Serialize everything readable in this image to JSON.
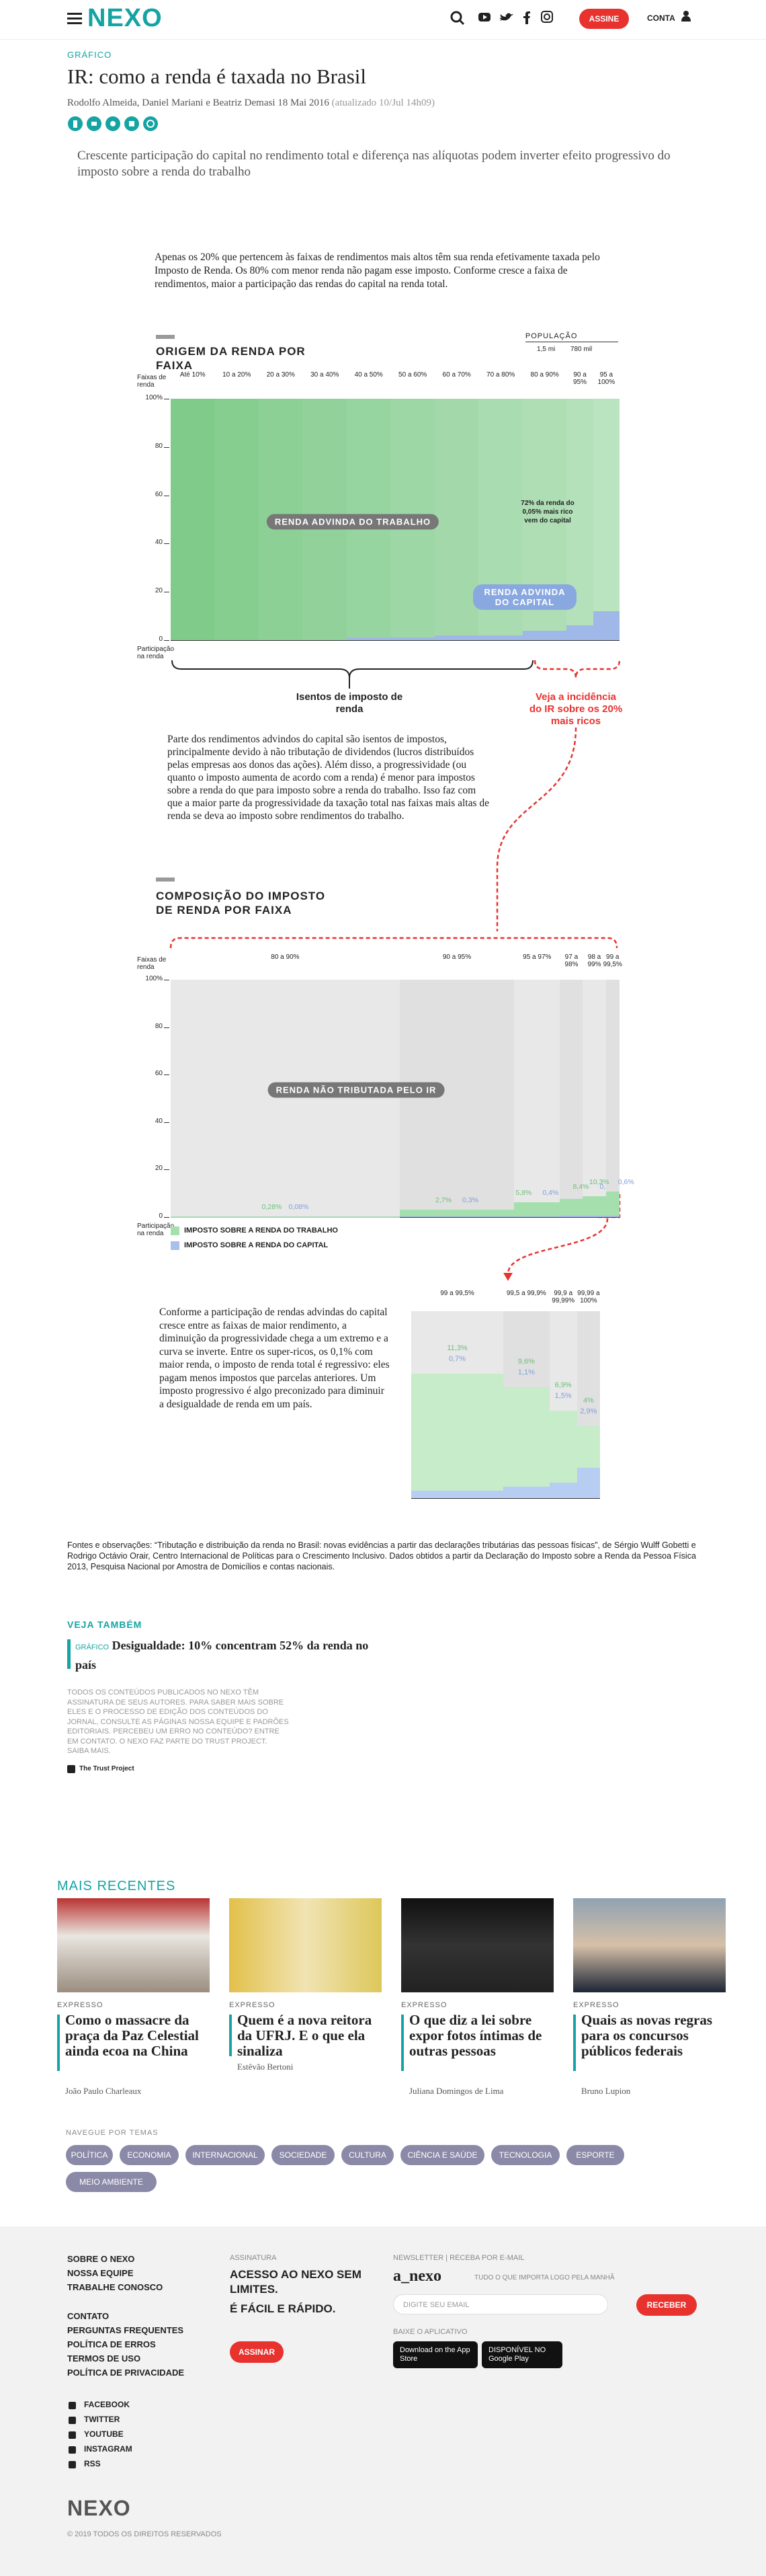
{
  "header": {
    "logo": "NEXO",
    "subscribe": "ASSINE",
    "account": "CONTA"
  },
  "article": {
    "section": "GRÁFICO",
    "title": "IR: como a renda é taxada no Brasil",
    "authors": "Rodolfo Almeida, Daniel Mariani e Beatriz Demasi",
    "date": "18 Mai 2016",
    "updated": "(atualizado 10/Jul 14h09)",
    "subtitle": "Crescente participação do capital no rendimento total e diferença nas alíquotas podem inverter efeito progressivo do imposto sobre a renda do trabalho",
    "intro": "Apenas os 20% que pertencem às faixas de rendimentos mais altos têm sua renda efetivamente taxada pelo Imposto de Renda. Os 80% com menor renda não pagam esse imposto. Conforme cresce a faixa de rendimentos, maior a participação das rendas do capital na renda total.",
    "paragraph2": "Parte dos rendimentos advindos do capital são isentos de impostos, principalmente devido à não tributação de dividendos (lucros distribuídos pelas empresas aos donos das ações). Além disso, a progressividade (ou quanto o imposto aumenta de acordo com a renda) é menor para impostos sobre a renda do que para imposto sobre a renda do trabalho. Isso faz com que a maior parte da progressividade da taxação total nas faixas mais altas de renda se deva ao imposto sobre rendimentos do trabalho.",
    "paragraph3": "Conforme a participação de rendas advindas do capital cresce entre as faixas de maior rendimento, a diminuição da progressividade chega a um extremo e a curva se inverte. Entre os super-ricos, os 0,1% com maior renda, o imposto de renda total é regressivo: eles pagam menos impostos que parcelas anteriores. Um imposto progressivo é algo preconizado para diminuir a desigualdade de renda em um país.",
    "sources": "Fontes e observações: “Tributação e distribuição da renda no Brasil: novas evidências a partir das declarações tributárias das pessoas físicas”, de Sérgio Wulff Gobetti e Rodrigo Octávio Orair, Centro Internacional de Políticas para o Crescimento Inclusivo. Dados obtidos a partir da Declaração do Imposto sobre a Renda da Pessoa Física 2013, Pesquisa Nacional por Amostra de Domicílios e contas nacionais."
  },
  "chart_data": [
    {
      "type": "area",
      "title": "ORIGEM DA RENDA POR FAIXA",
      "x_label": "Faixas de renda",
      "y_label": "Participação na renda",
      "population_label": "POPULAÇÃO",
      "population": [
        "1,5 mi",
        "780 mil"
      ],
      "categories": [
        "Até 10%",
        "10 a 20%",
        "20 a 30%",
        "30 a 40%",
        "40 a 50%",
        "50 a 60%",
        "60 a 70%",
        "70 a 80%",
        "80 a 90%",
        "90 a 95%",
        "95 a 100%"
      ],
      "ylim": [
        0,
        100
      ],
      "yticks": [
        0,
        20,
        40,
        60,
        80,
        {
          "value": 100,
          "label": "100%"
        }
      ],
      "series": [
        {
          "name": "RENDA ADVINDA DO TRABALHO",
          "color": "#8fd19a",
          "values": [
            100,
            100,
            100,
            100,
            99,
            99,
            98,
            98,
            96,
            94,
            88
          ]
        },
        {
          "name": "RENDA ADVINDA DO CAPITAL",
          "color": "#9fb8e8",
          "values": [
            0,
            0,
            0,
            0,
            1,
            1,
            2,
            2,
            4,
            6,
            12
          ]
        }
      ],
      "annotations": [
        "72% da renda do 0,05% mais rico vem do capital",
        "Isentos de imposto de renda",
        "Veja a incidência do IR sobre os 20% mais ricos"
      ]
    },
    {
      "type": "bar",
      "title": "COMPOSIÇÃO DO IMPOSTO DE RENDA POR FAIXA",
      "x_label": "Faixas de renda",
      "y_label": "Participação na renda",
      "background_label": "RENDA NÃO TRIBUTADA PELO IR",
      "categories": [
        "80 a 90%",
        "90 a 95%",
        "95 a 97%",
        "97 a 98%",
        "98 a 99%",
        "99 a 99,5%"
      ],
      "ylim": [
        0,
        100
      ],
      "yticks": [
        0,
        20,
        40,
        60,
        80,
        {
          "value": 100,
          "label": "100%"
        }
      ],
      "series": [
        {
          "name": "IMPOSTO SOBRE A RENDA DO TRABALHO",
          "color": "#a6dfae",
          "values": [
            0.28,
            2.7,
            5.8,
            7.2,
            8.4,
            10.3
          ],
          "value_labels": [
            "0,28%",
            "2,7%",
            "5,8%",
            null,
            "8,4%",
            "10,3%"
          ]
        },
        {
          "name": "IMPOSTO SOBRE A RENDA DO CAPITAL",
          "color": "#a9c0ec",
          "values": [
            0.08,
            0.3,
            0.4,
            0.45,
            0.5,
            0.6
          ],
          "value_labels": [
            "0,08%",
            "0,3%",
            "0,4%",
            null,
            "0,5%",
            "0,6%"
          ]
        }
      ]
    },
    {
      "type": "bar",
      "categories": [
        "99 a 99,5%",
        "99,5 a 99,9%",
        "99,9 a 99,99%",
        "99,99 a 100%"
      ],
      "ylim": [
        0,
        18
      ],
      "series": [
        {
          "color": "#c6ecca",
          "values": [
            11.3,
            9.6,
            6.9,
            4
          ],
          "value_labels": [
            "11,3%",
            "9,6%",
            "6,9%",
            "4%"
          ]
        },
        {
          "color": "#b7cdf2",
          "values": [
            0.7,
            1.1,
            1.5,
            2.9
          ],
          "value_labels": [
            "0,7%",
            "1,1%",
            "1,5%",
            "2,9%"
          ]
        }
      ]
    }
  ],
  "related": {
    "title": "VEJA TAMBÉM",
    "label": "GRÁFICO",
    "headline": "Desigualdade: 10% concentram 52% da renda no país"
  },
  "disclaimer": "TODOS OS CONTEÚDOS PUBLICADOS NO NEXO TÊM ASSINATURA DE SEUS AUTORES. PARA SABER MAIS SOBRE ELES E O PROCESSO DE EDIÇÃO DOS CONTEÚDOS DO JORNAL, CONSULTE AS PÁGINAS NOSSA EQUIPE E PADRÕES EDITORIAIS. PERCEBEU UM ERRO NO CONTEÚDO? ENTRE EM CONTATO. O NEXO FAZ PARTE DO TRUST PROJECT. SAIBA MAIS.",
  "trust": "The Trust Project",
  "recent": {
    "title": "MAIS RECENTES",
    "items": [
      {
        "label": "EXPRESSO",
        "headline": "Como o massacre da praça da Paz Celestial ainda ecoa na China",
        "author": "João Paulo Charleaux"
      },
      {
        "label": "EXPRESSO",
        "headline": "Quem é a nova reitora da UFRJ. E o que ela sinaliza",
        "author": "Estêvão Bertoni"
      },
      {
        "label": "EXPRESSO",
        "headline": "O que diz a lei sobre expor fotos íntimas de outras pessoas",
        "author": "Juliana Domingos de Lima"
      },
      {
        "label": "EXPRESSO",
        "headline": "Quais as novas regras para os concursos públicos federais",
        "author": "Bruno Lupion"
      }
    ]
  },
  "topics": {
    "title": "NAVEGUE POR TEMAS",
    "tags": [
      "POLÍTICA",
      "ECONOMIA",
      "INTERNACIONAL",
      "SOCIEDADE",
      "CULTURA",
      "CIÊNCIA E SAÚDE",
      "TECNOLOGIA",
      "ESPORTE",
      "MEIO AMBIENTE"
    ]
  },
  "footer": {
    "links1": [
      "SOBRE O NEXO",
      "NOSSA EQUIPE",
      "TRABALHE CONOSCO"
    ],
    "links2": [
      "CONTATO",
      "PERGUNTAS FREQUENTES",
      "POLÍTICA DE ERROS",
      "TERMOS DE USO",
      "POLÍTICA DE PRIVACIDADE"
    ],
    "social": [
      "FACEBOOK",
      "TWITTER",
      "YOUTUBE",
      "INSTAGRAM",
      "RSS"
    ],
    "subscription_label": "ASSINATURA",
    "subscription_text": "ACESSO AO NEXO SEM LIMITES.",
    "subscription_text2": "É FÁCIL E RÁPIDO.",
    "subscribe_button": "ASSINAR",
    "newsletter_label": "NEWSLETTER | RECEBA POR E-MAIL",
    "newsletter_name": "a_nexo",
    "newsletter_tagline": "TUDO O QUE IMPORTA LOGO PELA MANHÃ",
    "email_placeholder": "DIGITE SEU EMAIL",
    "receive_button": "RECEBER",
    "app_label": "BAIXE O APLICATIVO",
    "app_store": "Download on the App Store",
    "google_play": "DISPONÍVEL NO Google Play",
    "logo": "NEXO",
    "copyright": "© 2019 TODOS OS DIREITOS RESERVADOS"
  }
}
